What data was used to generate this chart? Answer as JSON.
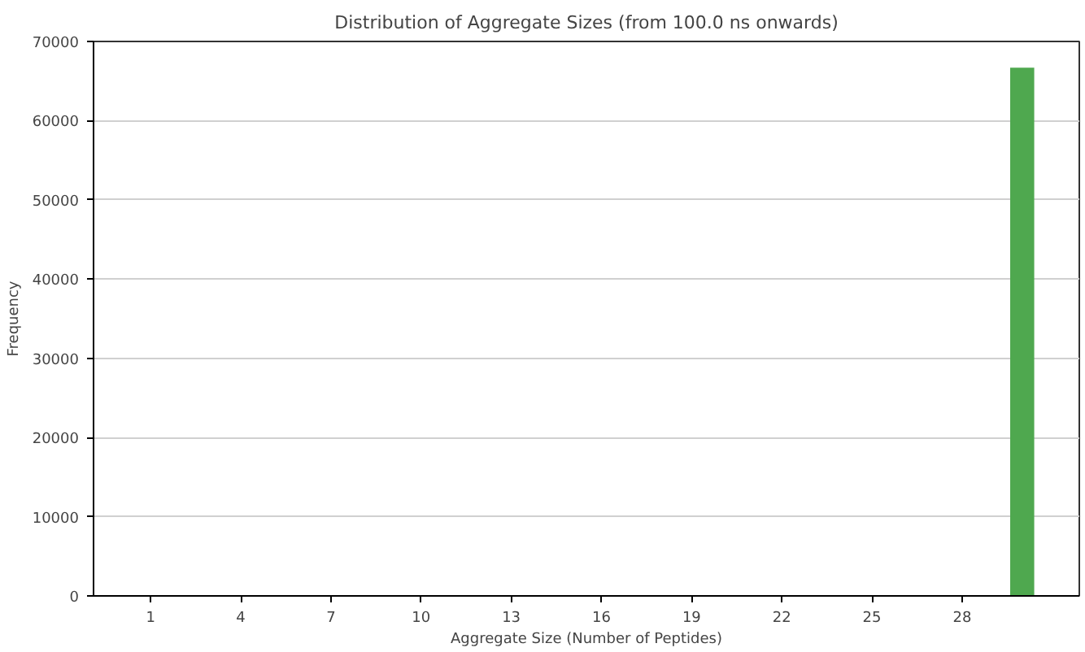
{
  "chart_data": {
    "type": "bar",
    "title": "Distribution of Aggregate Sizes (from 100.0 ns onwards)",
    "xlabel": "Aggregate Size (Number of Peptides)",
    "ylabel": "Frequency",
    "x": [
      30
    ],
    "values": [
      66700
    ],
    "color": "#4fa84f",
    "xlim": [
      -0.9,
      31.9
    ],
    "xticks": [
      1,
      4,
      7,
      10,
      13,
      16,
      19,
      22,
      25,
      28
    ],
    "ylim": [
      0,
      70000
    ],
    "yticks": [
      0,
      10000,
      20000,
      30000,
      40000,
      50000,
      60000,
      70000
    ],
    "grid": "y"
  }
}
